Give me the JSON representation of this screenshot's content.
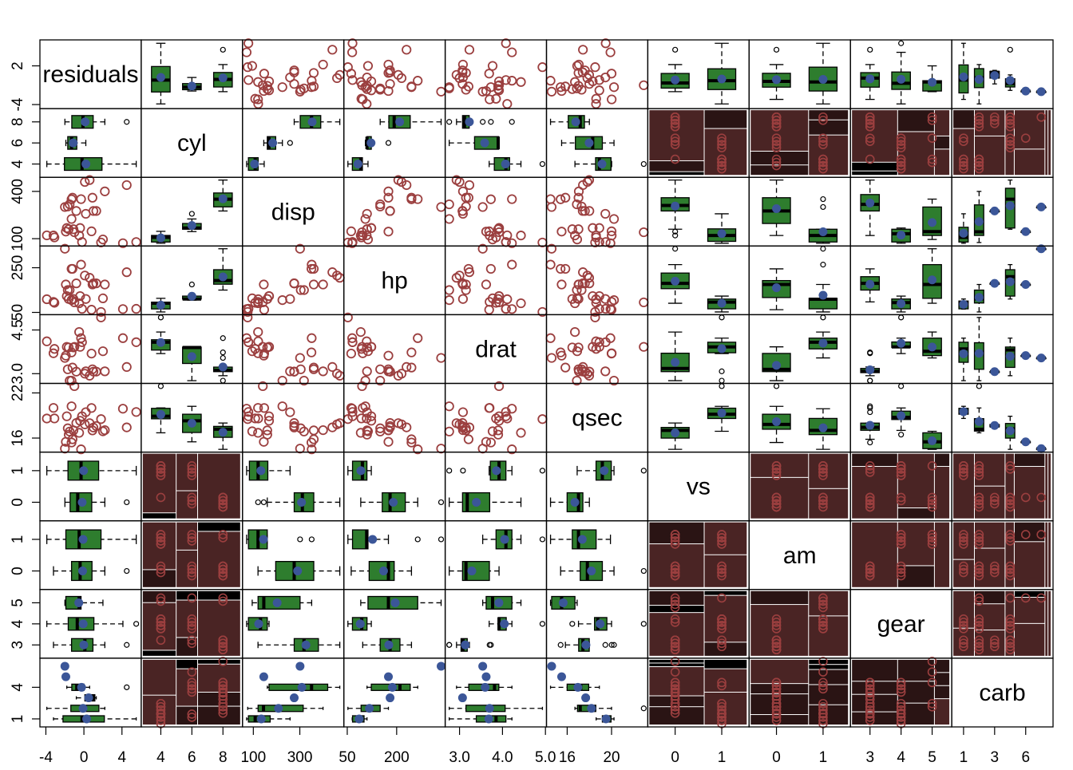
{
  "chart_data": {
    "type": "scatter",
    "title": "",
    "variables": [
      "residuals",
      "cyl",
      "disp",
      "hp",
      "drat",
      "qsec",
      "vs",
      "am",
      "gear",
      "carb"
    ],
    "kinds": [
      "num",
      "cat",
      "num",
      "num",
      "num",
      "num",
      "cat",
      "cat",
      "cat",
      "cat"
    ],
    "levels": {
      "cyl": [
        4,
        6,
        8
      ],
      "vs": [
        0,
        1
      ],
      "am": [
        0,
        1
      ],
      "gear": [
        3,
        4,
        5
      ],
      "carb": [
        1,
        2,
        3,
        4,
        6,
        8
      ]
    },
    "ranges": {
      "residuals": [
        -4.2,
        5.6
      ],
      "disp": [
        71,
        472
      ],
      "hp": [
        52,
        335
      ],
      "drat": [
        2.76,
        4.93
      ],
      "qsec": [
        14.5,
        22.9
      ]
    },
    "x_tick_labels": [
      [
        "-4",
        "0",
        "4"
      ],
      [
        "4",
        "6",
        "8"
      ],
      [
        "100",
        "300"
      ],
      [
        "50",
        "200"
      ],
      [
        "3.0",
        "4.0",
        "5.0"
      ],
      [
        "16",
        "20"
      ],
      [
        "0",
        "1"
      ],
      [
        "0",
        "1"
      ],
      [
        "3",
        "4",
        "5"
      ],
      [
        "1",
        "3",
        "6"
      ]
    ],
    "x_tick_values": [
      [
        -4,
        0,
        4
      ],
      [
        4,
        6,
        8
      ],
      [
        100,
        300
      ],
      [
        50,
        200
      ],
      [
        3.0,
        4.0,
        5.0
      ],
      [
        16,
        20
      ],
      [
        0,
        1
      ],
      [
        0,
        1
      ],
      [
        3,
        4,
        5
      ],
      [
        1,
        3,
        6
      ]
    ],
    "y_tick_labels": [
      [
        "-4",
        "2"
      ],
      [
        "4",
        "6",
        "8"
      ],
      [
        "100",
        "400"
      ],
      [
        "50",
        "250"
      ],
      [
        "3.0",
        "4.5"
      ],
      [
        "16",
        "22"
      ],
      [
        "0",
        "1"
      ],
      [
        "0",
        "1"
      ],
      [
        "3",
        "4",
        "5"
      ],
      [
        "1",
        "4"
      ]
    ],
    "y_tick_values": [
      [
        -4,
        2
      ],
      [
        4,
        6,
        8
      ],
      [
        100,
        400
      ],
      [
        50,
        250
      ],
      [
        3.0,
        4.5
      ],
      [
        16,
        22
      ],
      [
        0,
        1
      ],
      [
        0,
        1
      ],
      [
        3,
        4,
        5
      ],
      [
        1,
        4
      ]
    ],
    "observations": [
      {
        "cyl": 6,
        "disp": 160,
        "hp": 110,
        "drat": 3.9,
        "qsec": 16.46,
        "vs": 0,
        "am": 1,
        "gear": 4,
        "carb": 4,
        "residuals": -1.6
      },
      {
        "cyl": 6,
        "disp": 160,
        "hp": 110,
        "drat": 3.9,
        "qsec": 17.02,
        "vs": 0,
        "am": 1,
        "gear": 4,
        "carb": 4,
        "residuals": -1.1
      },
      {
        "cyl": 4,
        "disp": 108,
        "hp": 93,
        "drat": 3.85,
        "qsec": 18.61,
        "vs": 1,
        "am": 1,
        "gear": 4,
        "carb": 1,
        "residuals": -3.1
      },
      {
        "cyl": 6,
        "disp": 258,
        "hp": 110,
        "drat": 3.08,
        "qsec": 19.44,
        "vs": 1,
        "am": 0,
        "gear": 3,
        "carb": 1,
        "residuals": 0.2
      },
      {
        "cyl": 8,
        "disp": 360,
        "hp": 175,
        "drat": 3.15,
        "qsec": 17.02,
        "vs": 0,
        "am": 0,
        "gear": 3,
        "carb": 2,
        "residuals": 0.9
      },
      {
        "cyl": 6,
        "disp": 225,
        "hp": 105,
        "drat": 2.76,
        "qsec": 20.22,
        "vs": 1,
        "am": 0,
        "gear": 3,
        "carb": 1,
        "residuals": -1.3
      },
      {
        "cyl": 8,
        "disp": 360,
        "hp": 245,
        "drat": 3.21,
        "qsec": 15.84,
        "vs": 0,
        "am": 0,
        "gear": 3,
        "carb": 4,
        "residuals": -1.2
      },
      {
        "cyl": 4,
        "disp": 146.7,
        "hp": 62,
        "drat": 3.69,
        "qsec": 20,
        "vs": 1,
        "am": 0,
        "gear": 4,
        "carb": 2,
        "residuals": 0.8
      },
      {
        "cyl": 4,
        "disp": 140.8,
        "hp": 95,
        "drat": 3.92,
        "qsec": 22.9,
        "vs": 1,
        "am": 0,
        "gear": 4,
        "carb": 2,
        "residuals": -1.0
      },
      {
        "cyl": 6,
        "disp": 167.6,
        "hp": 123,
        "drat": 3.92,
        "qsec": 18.3,
        "vs": 1,
        "am": 0,
        "gear": 4,
        "carb": 4,
        "residuals": -0.4
      },
      {
        "cyl": 6,
        "disp": 167.6,
        "hp": 123,
        "drat": 3.92,
        "qsec": 18.9,
        "vs": 1,
        "am": 0,
        "gear": 4,
        "carb": 4,
        "residuals": -1.8
      },
      {
        "cyl": 8,
        "disp": 275.8,
        "hp": 180,
        "drat": 3.07,
        "qsec": 17.4,
        "vs": 0,
        "am": 0,
        "gear": 3,
        "carb": 3,
        "residuals": 1.0
      },
      {
        "cyl": 8,
        "disp": 275.8,
        "hp": 180,
        "drat": 3.07,
        "qsec": 17.6,
        "vs": 0,
        "am": 0,
        "gear": 3,
        "carb": 3,
        "residuals": 1.3
      },
      {
        "cyl": 8,
        "disp": 275.8,
        "hp": 180,
        "drat": 3.07,
        "qsec": 18,
        "vs": 0,
        "am": 0,
        "gear": 3,
        "carb": 3,
        "residuals": -0.8
      },
      {
        "cyl": 8,
        "disp": 472,
        "hp": 205,
        "drat": 2.93,
        "qsec": 17.98,
        "vs": 0,
        "am": 0,
        "gear": 3,
        "carb": 4,
        "residuals": 0.6
      },
      {
        "cyl": 8,
        "disp": 460,
        "hp": 215,
        "drat": 3,
        "qsec": 17.82,
        "vs": 0,
        "am": 0,
        "gear": 3,
        "carb": 4,
        "residuals": 0.1
      },
      {
        "cyl": 8,
        "disp": 440,
        "hp": 230,
        "drat": 3.23,
        "qsec": 17.42,
        "vs": 0,
        "am": 0,
        "gear": 3,
        "carb": 4,
        "residuals": 4.5
      },
      {
        "cyl": 4,
        "disp": 78.7,
        "hp": 66,
        "drat": 4.08,
        "qsec": 19.47,
        "vs": 1,
        "am": 1,
        "gear": 4,
        "carb": 1,
        "residuals": 5.5
      },
      {
        "cyl": 4,
        "disp": 75.7,
        "hp": 52,
        "drat": 4.93,
        "qsec": 18.52,
        "vs": 1,
        "am": 1,
        "gear": 4,
        "carb": 2,
        "residuals": 1.8
      },
      {
        "cyl": 4,
        "disp": 71.1,
        "hp": 65,
        "drat": 4.22,
        "qsec": 19.9,
        "vs": 1,
        "am": 1,
        "gear": 4,
        "carb": 1,
        "residuals": 4.1
      },
      {
        "cyl": 4,
        "disp": 120.1,
        "hp": 97,
        "drat": 3.7,
        "qsec": 20.01,
        "vs": 1,
        "am": 0,
        "gear": 3,
        "carb": 1,
        "residuals": -3.2
      },
      {
        "cyl": 8,
        "disp": 318,
        "hp": 150,
        "drat": 2.76,
        "qsec": 16.87,
        "vs": 0,
        "am": 0,
        "gear": 3,
        "carb": 2,
        "residuals": -1.5
      },
      {
        "cyl": 8,
        "disp": 304,
        "hp": 150,
        "drat": 3.15,
        "qsec": 17.3,
        "vs": 0,
        "am": 0,
        "gear": 3,
        "carb": 2,
        "residuals": -1.7
      },
      {
        "cyl": 8,
        "disp": 350,
        "hp": 245,
        "drat": 3.73,
        "qsec": 15.41,
        "vs": 0,
        "am": 0,
        "gear": 3,
        "carb": 4,
        "residuals": -1.3
      },
      {
        "cyl": 8,
        "disp": 400,
        "hp": 175,
        "drat": 3.08,
        "qsec": 17.05,
        "vs": 0,
        "am": 0,
        "gear": 3,
        "carb": 2,
        "residuals": 2.2
      },
      {
        "cyl": 4,
        "disp": 79,
        "hp": 66,
        "drat": 4.08,
        "qsec": 18.9,
        "vs": 1,
        "am": 1,
        "gear": 4,
        "carb": 1,
        "residuals": -0.2
      },
      {
        "cyl": 4,
        "disp": 120.3,
        "hp": 91,
        "drat": 4.43,
        "qsec": 16.7,
        "vs": 0,
        "am": 1,
        "gear": 5,
        "carb": 2,
        "residuals": -0.5
      },
      {
        "cyl": 4,
        "disp": 95.1,
        "hp": 113,
        "drat": 3.77,
        "qsec": 16.9,
        "vs": 1,
        "am": 1,
        "gear": 5,
        "carb": 2,
        "residuals": 2.0
      },
      {
        "cyl": 8,
        "disp": 351,
        "hp": 264,
        "drat": 4.22,
        "qsec": 14.5,
        "vs": 0,
        "am": 1,
        "gear": 5,
        "carb": 4,
        "residuals": -0.3
      },
      {
        "cyl": 6,
        "disp": 145,
        "hp": 175,
        "drat": 3.62,
        "qsec": 15.5,
        "vs": 0,
        "am": 1,
        "gear": 5,
        "carb": 6,
        "residuals": -1.9
      },
      {
        "cyl": 8,
        "disp": 301,
        "hp": 335,
        "drat": 3.54,
        "qsec": 14.6,
        "vs": 0,
        "am": 1,
        "gear": 5,
        "carb": 8,
        "residuals": -2.0
      },
      {
        "cyl": 4,
        "disp": 121,
        "hp": 109,
        "drat": 4.11,
        "qsec": 18.6,
        "vs": 1,
        "am": 1,
        "gear": 4,
        "carb": 2,
        "residuals": -3.9
      }
    ],
    "colors": {
      "point": "#9b3f3f",
      "box_fill": "#2e7d2e",
      "mean_dot": "#3b5698",
      "mosaic_dark": "#000000",
      "mosaic_light": "#4a2424"
    },
    "grid": false,
    "legend": "none"
  }
}
